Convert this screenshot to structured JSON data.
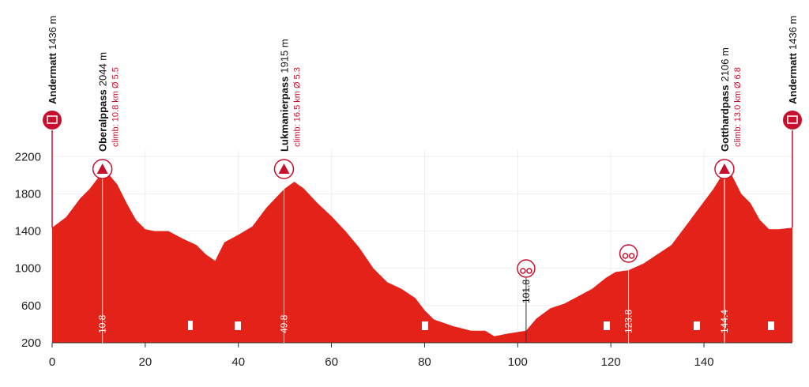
{
  "chart_data": {
    "type": "area",
    "color": "#e32219",
    "x": [
      0,
      3,
      6,
      8,
      10.8,
      12,
      14,
      16,
      18,
      20,
      22,
      25,
      28,
      31,
      33,
      35,
      37,
      40,
      43,
      46,
      49.8,
      52,
      54,
      57,
      60,
      63,
      66,
      69,
      72,
      75,
      78,
      80,
      82,
      86,
      90,
      93,
      95,
      98,
      101.8,
      104,
      107,
      110,
      113,
      116,
      119,
      121,
      123.8,
      127,
      130,
      133,
      136,
      139,
      142,
      145,
      146,
      148,
      150,
      152,
      154,
      156,
      159
    ],
    "values": [
      1436,
      1550,
      1750,
      1850,
      2030,
      2020,
      1900,
      1700,
      1520,
      1420,
      1400,
      1400,
      1320,
      1250,
      1150,
      1080,
      1280,
      1360,
      1450,
      1650,
      1850,
      1930,
      1860,
      1700,
      1560,
      1400,
      1220,
      1000,
      850,
      780,
      680,
      550,
      450,
      380,
      330,
      330,
      270,
      300,
      330,
      460,
      570,
      620,
      700,
      780,
      900,
      960,
      980,
      1050,
      1150,
      1250,
      1450,
      1650,
      1850,
      2090,
      2000,
      1800,
      1700,
      1520,
      1420,
      1420,
      1436
    ],
    "xlim": [
      0,
      159
    ],
    "ylim": [
      200,
      2440
    ],
    "xticks": [
      0,
      20,
      40,
      60,
      80,
      100,
      120,
      140
    ],
    "yticks": [
      200,
      600,
      1000,
      1400,
      1800,
      2200
    ],
    "grid": true,
    "start": {
      "name": "Andermatt",
      "altitude": "1436 m"
    },
    "finish": {
      "name": "Andermatt",
      "altitude": "1436 m"
    },
    "passes": [
      {
        "name": "Oberalppass",
        "altitude": "2044 m",
        "climb": "climb: 10.8 km Ø 5.5",
        "km": 10.8
      },
      {
        "name": "Lukmanierpass",
        "altitude": "1915 m",
        "climb": "climb: 16.5 km Ø 5.3",
        "km": 49.8
      },
      {
        "name": "Gotthardpass",
        "altitude": "2106 m",
        "climb": "climb: 13.0 km Ø 6.8",
        "km": 144.4
      }
    ],
    "sprints": [
      {
        "km": 101.8
      },
      {
        "km": 123.8
      }
    ]
  }
}
